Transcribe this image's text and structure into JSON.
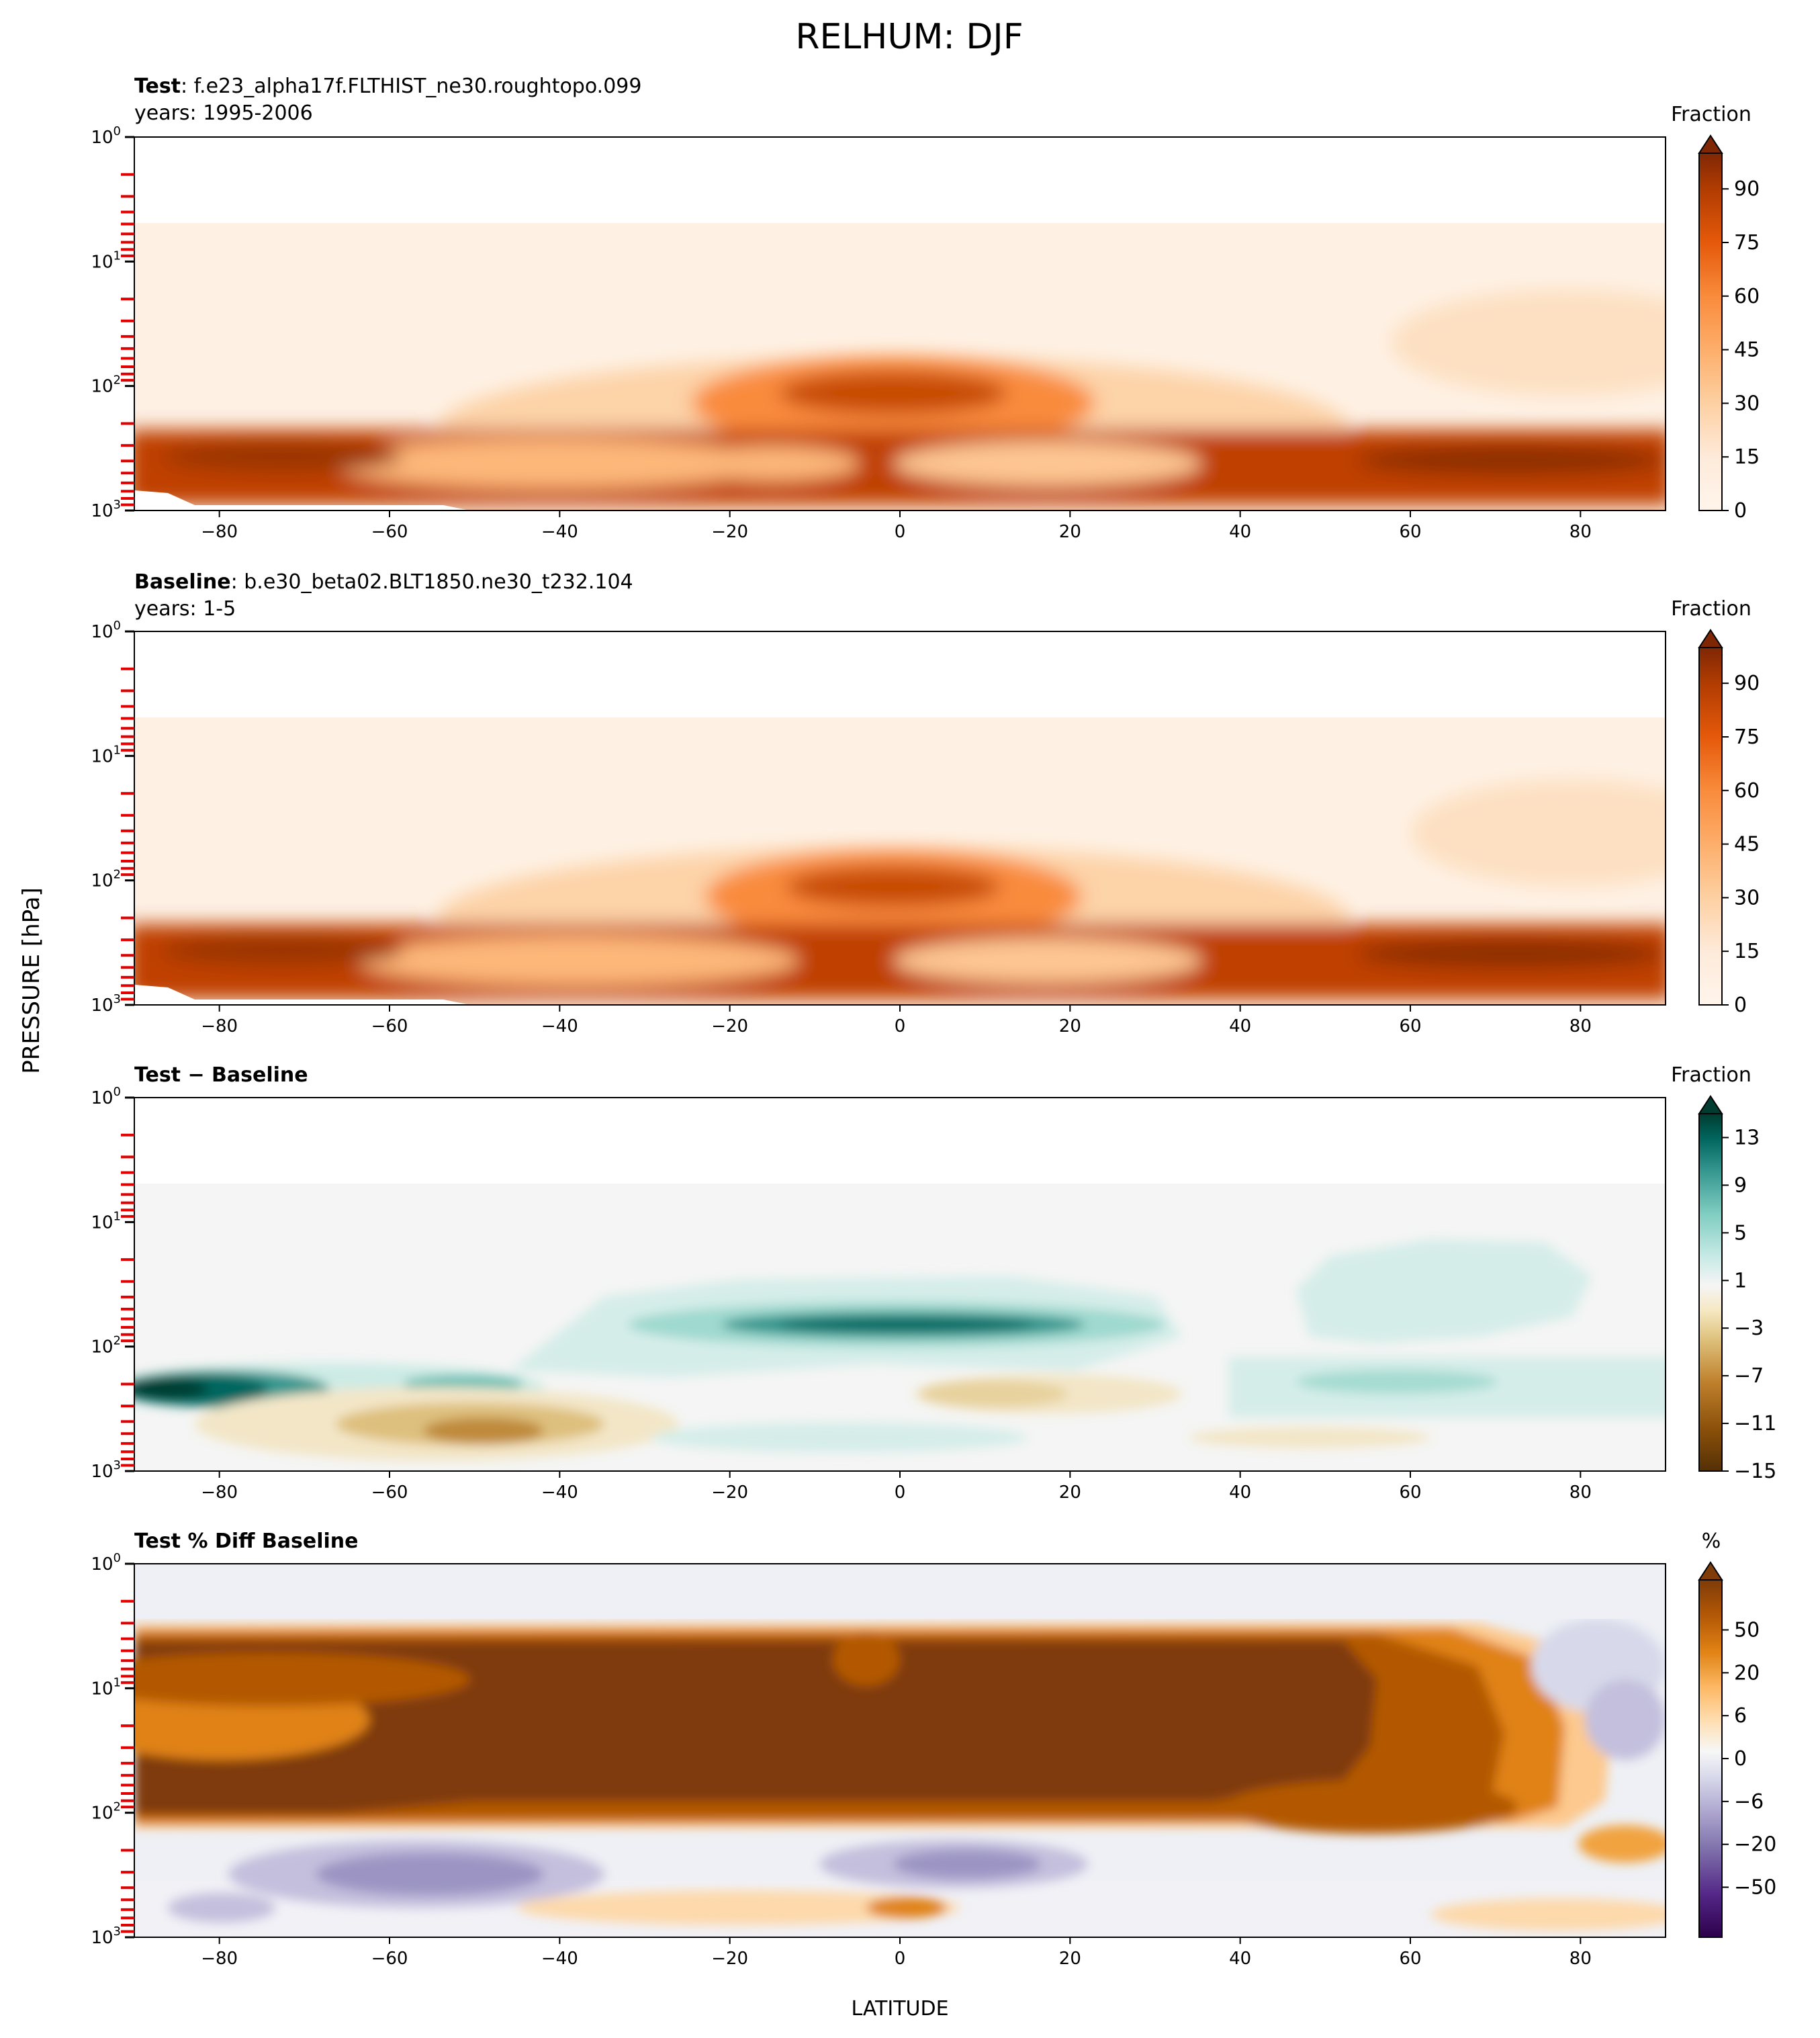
{
  "title": "RELHUM: DJF",
  "ylabel": "PRESSURE [hPa]",
  "xlabel": "LATITUDE",
  "chart_data": [
    {
      "type": "contour",
      "panel": "test",
      "title_bold": "Test",
      "title_rest": ": f.e23_alpha17f.FLTHIST_ne30.roughtopo.099",
      "subtitle": "years: 1995-2006",
      "colorbar_label": "Fraction",
      "colorbar_ticks": [
        "0",
        "15",
        "30",
        "45",
        "60",
        "75",
        "90"
      ],
      "colorbar_levels": [
        0,
        100
      ],
      "colormap": [
        "#fff5eb",
        "#fdd9b4",
        "#fdae6b",
        "#f98b3c",
        "#e5590a",
        "#c04102",
        "#8c2d04",
        "#7f2704"
      ],
      "xlim": [
        -90,
        90
      ],
      "xticks": [
        "-80",
        "-60",
        "-40",
        "-20",
        "0",
        "20",
        "40",
        "60",
        "80"
      ],
      "ylim_hPa": [
        1000,
        1
      ],
      "yscale": "log",
      "features": [
        {
          "region": "boundary layer 200-1000 hPa, all latitudes",
          "value_range": "75-95"
        },
        {
          "region": "tropical upper troposphere ~100 hPa, 20S-20N",
          "value_range": "60-80"
        },
        {
          "region": "subtropical mid troposphere ~500 hPa",
          "value_range": "15-35"
        },
        {
          "region": "stratosphere above 50 hPa",
          "value_range": "0-5"
        }
      ]
    },
    {
      "type": "contour",
      "panel": "baseline",
      "title_bold": "Baseline",
      "title_rest": ": b.e30_beta02.BLT1850.ne30_t232.104",
      "subtitle": "years: 1-5",
      "colorbar_label": "Fraction",
      "colorbar_ticks": [
        "0",
        "15",
        "30",
        "45",
        "60",
        "75",
        "90"
      ],
      "colorbar_levels": [
        0,
        100
      ],
      "colormap": [
        "#fff5eb",
        "#fdd9b4",
        "#fdae6b",
        "#f98b3c",
        "#e5590a",
        "#c04102",
        "#8c2d04",
        "#7f2704"
      ],
      "xlim": [
        -90,
        90
      ],
      "xticks": [
        "-80",
        "-60",
        "-40",
        "-20",
        "0",
        "20",
        "40",
        "60",
        "80"
      ],
      "ylim_hPa": [
        1000,
        1
      ],
      "yscale": "log",
      "features": [
        {
          "region": "boundary layer 200-1000 hPa, all latitudes",
          "value_range": "75-95"
        },
        {
          "region": "tropical upper troposphere ~100 hPa, 20S-20N",
          "value_range": "55-75"
        },
        {
          "region": "subtropical mid troposphere ~500 hPa",
          "value_range": "15-35"
        },
        {
          "region": "stratosphere above 50 hPa",
          "value_range": "0-5"
        }
      ]
    },
    {
      "type": "contour",
      "panel": "difference",
      "title": "Test − Baseline",
      "colorbar_label": "Fraction",
      "colorbar_ticks": [
        "13",
        "9",
        "5",
        "1",
        "−3",
        "−7",
        "−11",
        "−15"
      ],
      "colorbar_levels": [
        -15,
        15
      ],
      "colormap": [
        "#543005",
        "#8c510a",
        "#bf812d",
        "#dfc27d",
        "#f6e8c3",
        "#f5f5f5",
        "#c7eae5",
        "#80cdc1",
        "#35978f",
        "#01665e",
        "#003c30"
      ],
      "xlim": [
        -90,
        90
      ],
      "xticks": [
        "-80",
        "-60",
        "-40",
        "-20",
        "0",
        "20",
        "40",
        "60",
        "80"
      ],
      "ylim_hPa": [
        1000,
        1
      ],
      "yscale": "log",
      "features": [
        {
          "region": "Antarctic ~220 hPa, 90S-70S",
          "value_range": "9-15"
        },
        {
          "region": "tropical ~70 hPa, 30S-25N",
          "value_range": "5-13"
        },
        {
          "region": "southern midlatitudes ~300 hPa, 65S-35S",
          "value_range": "-11 to -3"
        },
        {
          "region": "northern ~200 hPa, 45N-75N",
          "value_range": "1-5"
        }
      ]
    },
    {
      "type": "contour",
      "panel": "percent_difference",
      "title": "Test % Diff Baseline",
      "colorbar_label": "%",
      "colorbar_ticks": [
        "50",
        "20",
        "6",
        "0",
        "−6",
        "−20",
        "−50"
      ],
      "colorbar_levels": [
        -100,
        100
      ],
      "colormap": [
        "#2d004b",
        "#542788",
        "#8073ac",
        "#b2abd2",
        "#d8daeb",
        "#f7f7f7",
        "#fee0b6",
        "#fdb863",
        "#e08214",
        "#b35806",
        "#7f3b08"
      ],
      "xlim": [
        -90,
        90
      ],
      "xticks": [
        "-80",
        "-60",
        "-40",
        "-20",
        "0",
        "20",
        "40",
        "60",
        "80"
      ],
      "ylim_hPa": [
        1000,
        1
      ],
      "yscale": "log",
      "features": [
        {
          "region": "stratosphere 3-100 hPa, 90S-60N",
          "value_range": "50-100"
        },
        {
          "region": "southern midlatitudes ~400 hPa, 65S-25S",
          "value_range": "-20 to -6"
        },
        {
          "region": "northern high latitudes 5-50 hPa, 80N-90N",
          "value_range": "-6 to 0"
        },
        {
          "region": "northern ~150 hPa, 50N-75N",
          "value_range": "20-50"
        }
      ]
    }
  ]
}
